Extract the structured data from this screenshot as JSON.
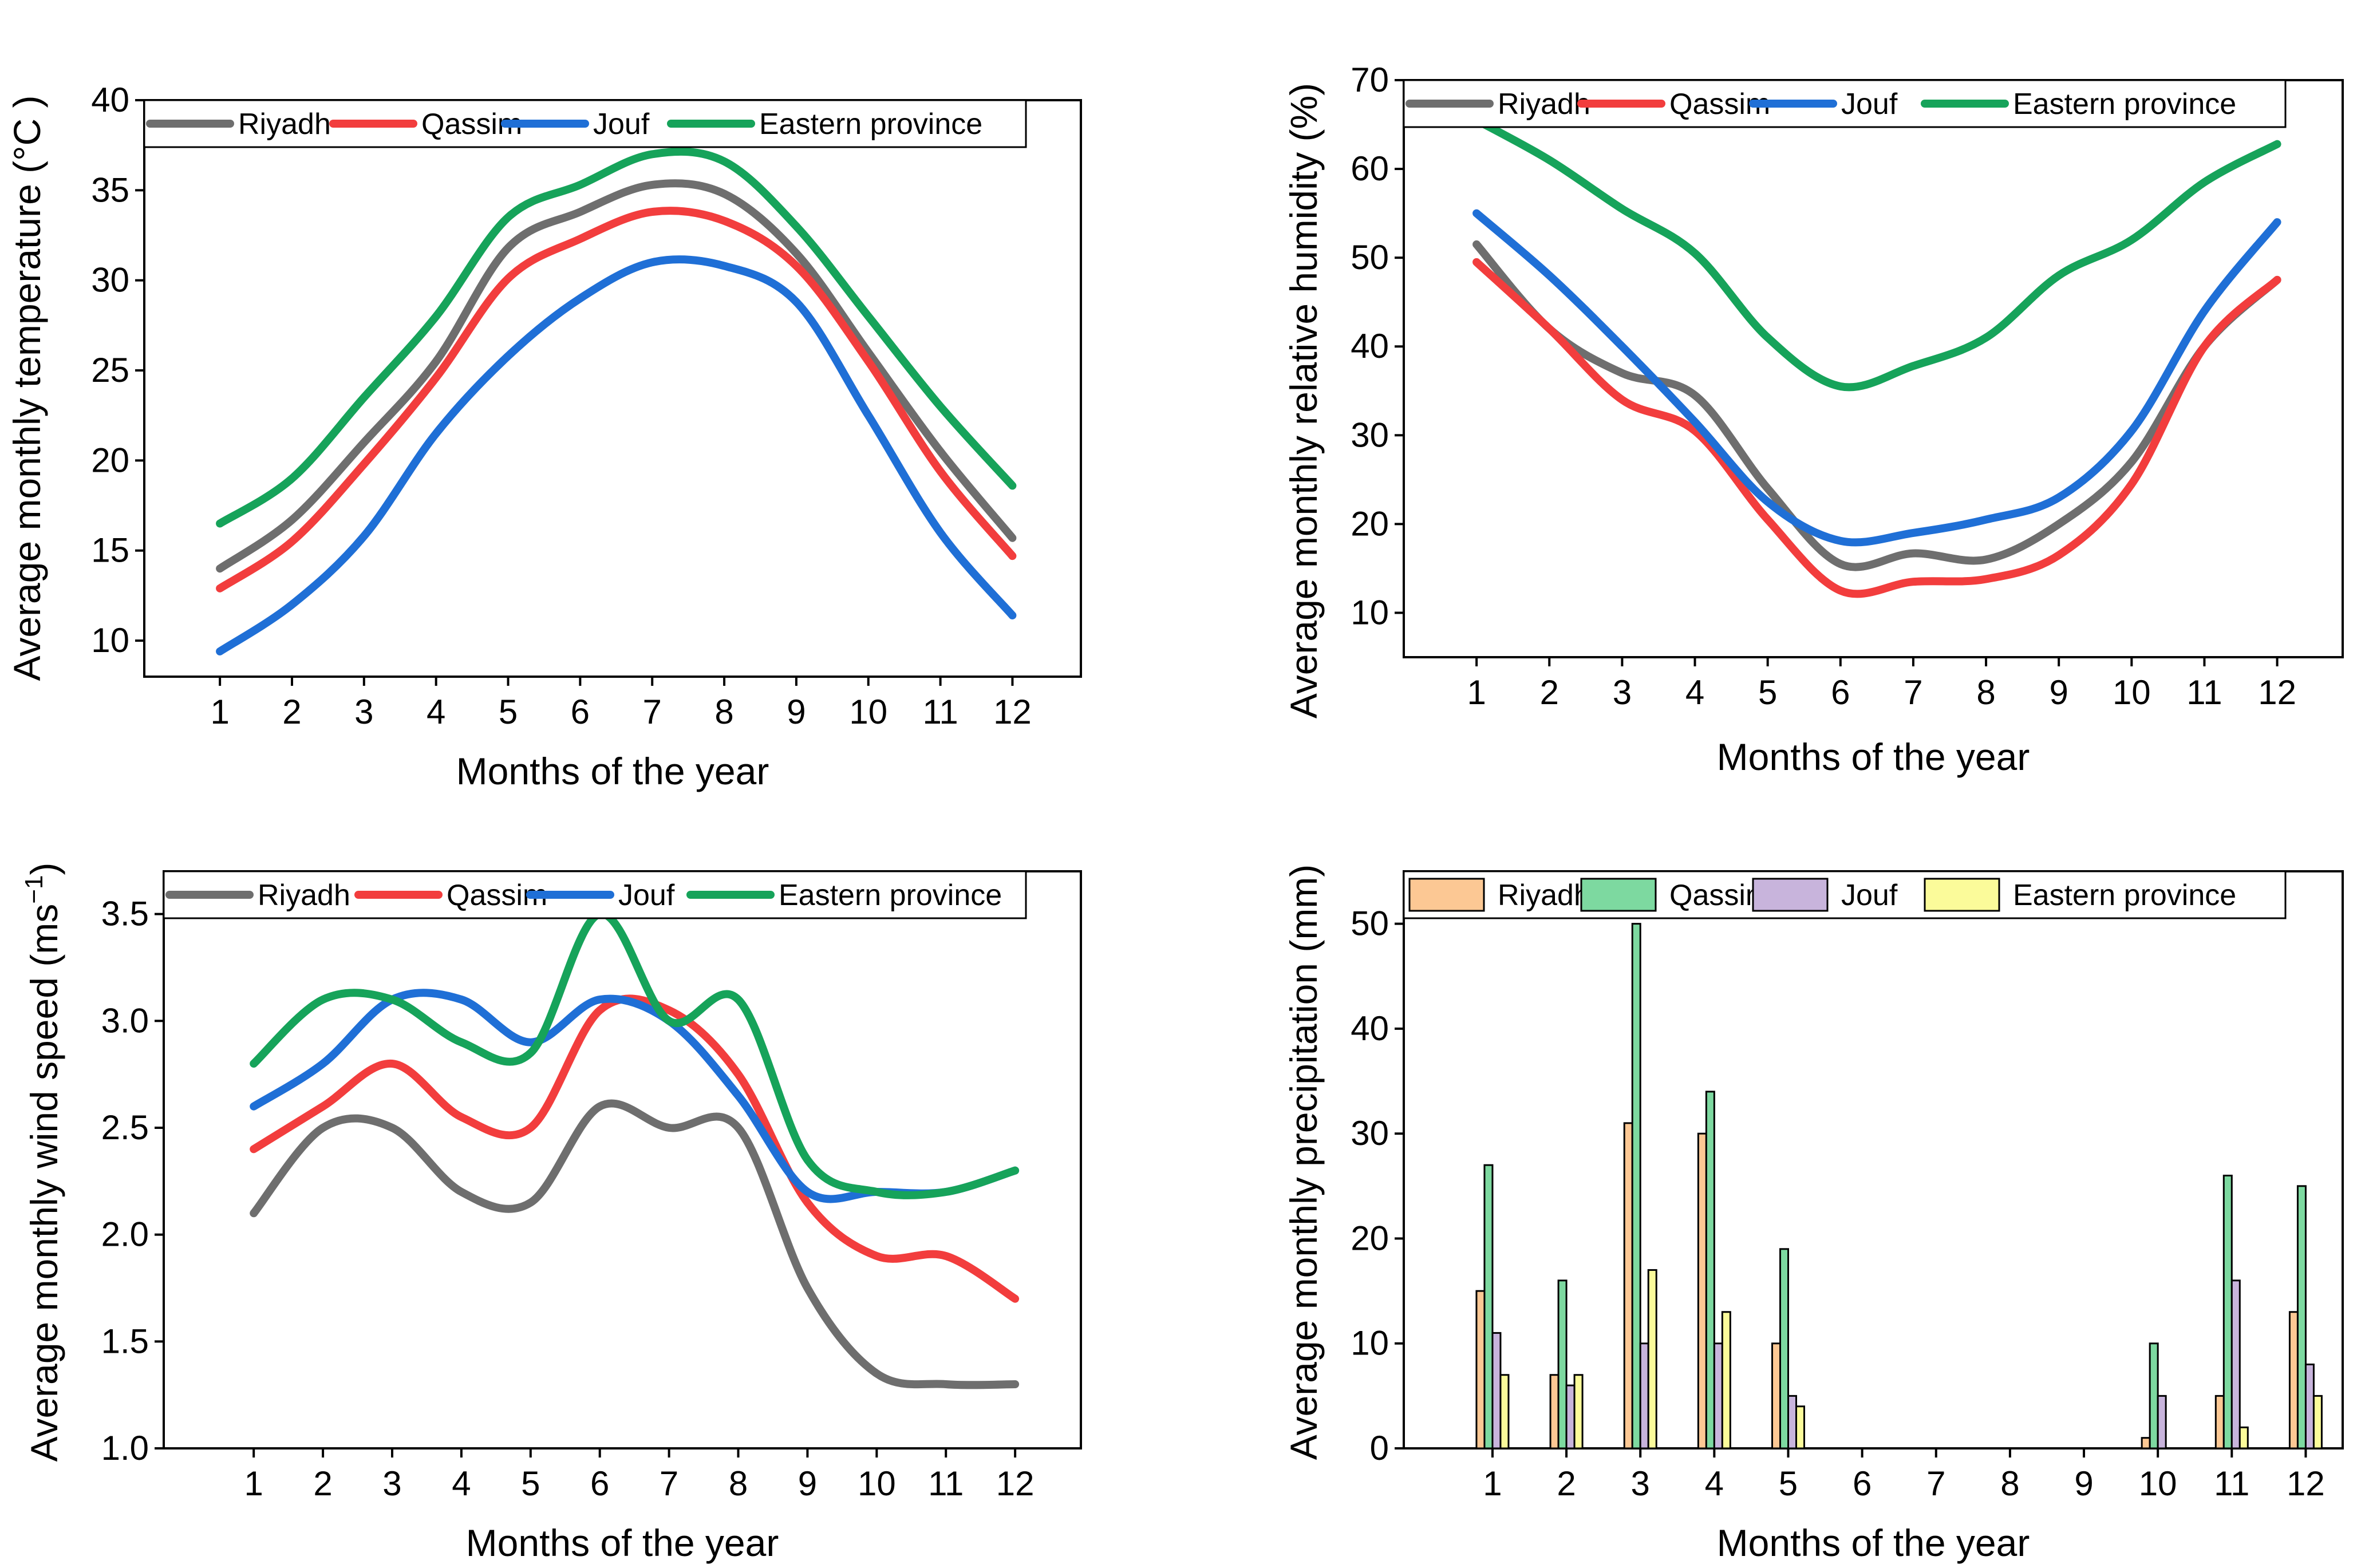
{
  "colors": {
    "Riyadh": "#6e6e6e",
    "Qassim": "#f23d3d",
    "Jouf": "#1f6fd6",
    "Eastern province": "#16a35a"
  },
  "bar_colors": {
    "Riyadh": "#fcc894",
    "Qassim": "#7dd9a0",
    "Jouf": "#c8b4dc",
    "Eastern province": "#fbfb9a"
  },
  "chart_data": [
    {
      "type": "line",
      "x": [
        1,
        2,
        3,
        4,
        5,
        6,
        7,
        8,
        9,
        10,
        11,
        12
      ],
      "xlabel": "Months of the year",
      "ylabel": "Average monthly temperature (°C )",
      "ylim": [
        8,
        40
      ],
      "yticks": [
        10,
        15,
        20,
        25,
        30,
        35,
        40
      ],
      "legend_position": "top",
      "series": [
        {
          "name": "Riyadh",
          "values": [
            14.0,
            16.7,
            21.0,
            25.5,
            31.8,
            33.8,
            35.3,
            34.8,
            31.5,
            26.0,
            20.5,
            15.7
          ]
        },
        {
          "name": "Qassim",
          "values": [
            12.9,
            15.5,
            19.8,
            24.6,
            30.1,
            32.3,
            33.8,
            33.3,
            30.8,
            25.5,
            19.4,
            14.7
          ]
        },
        {
          "name": "Jouf",
          "values": [
            9.4,
            12.0,
            15.8,
            21.5,
            25.8,
            29.0,
            31.0,
            30.8,
            28.8,
            22.5,
            16.0,
            11.4
          ]
        },
        {
          "name": "Eastern province",
          "values": [
            16.5,
            19.0,
            23.5,
            28.0,
            33.5,
            35.3,
            37.0,
            36.6,
            33.0,
            28.0,
            23.0,
            18.6
          ]
        }
      ]
    },
    {
      "type": "line",
      "x": [
        1,
        2,
        3,
        4,
        5,
        6,
        7,
        8,
        9,
        10,
        11,
        12
      ],
      "xlabel": "Months of the year",
      "ylabel": "Average monthly relative humidity (%)",
      "ylim": [
        5,
        70
      ],
      "yticks": [
        10,
        20,
        30,
        40,
        50,
        60,
        70
      ],
      "legend_position": "top",
      "series": [
        {
          "name": "Riyadh",
          "values": [
            51.5,
            42.0,
            37.0,
            34.5,
            24.0,
            15.5,
            16.7,
            16.0,
            20.0,
            27.0,
            40.0,
            47.5
          ]
        },
        {
          "name": "Qassim",
          "values": [
            49.5,
            42.0,
            34.0,
            30.5,
            20.5,
            12.5,
            13.5,
            13.8,
            16.5,
            24.5,
            40.0,
            47.5
          ]
        },
        {
          "name": "Jouf",
          "values": [
            55.0,
            48.0,
            40.0,
            31.5,
            22.5,
            18.1,
            19.0,
            20.5,
            23.0,
            30.5,
            44.0,
            54.0
          ]
        },
        {
          "name": "Eastern province",
          "values": [
            65.5,
            61.0,
            55.5,
            50.5,
            41.0,
            35.5,
            37.8,
            41.0,
            48.0,
            52.0,
            58.5,
            62.8
          ]
        }
      ]
    },
    {
      "type": "line",
      "x": [
        1,
        2,
        3,
        4,
        5,
        6,
        7,
        8,
        9,
        10,
        11,
        12
      ],
      "xlabel": "Months of the year",
      "ylabel": "Average monthly wind speed (ms",
      "ylabel_sup": "−1",
      "ylabel_end": ")",
      "ylim": [
        1.0,
        3.7
      ],
      "yticks": [
        1.0,
        1.5,
        2.0,
        2.5,
        3.0,
        3.5
      ],
      "legend_position": "top",
      "series": [
        {
          "name": "Riyadh",
          "values": [
            2.1,
            2.5,
            2.5,
            2.2,
            2.15,
            2.6,
            2.5,
            2.5,
            1.75,
            1.35,
            1.3,
            1.3
          ]
        },
        {
          "name": "Qassim",
          "values": [
            2.4,
            2.6,
            2.8,
            2.55,
            2.5,
            3.05,
            3.05,
            2.75,
            2.15,
            1.9,
            1.9,
            1.7
          ]
        },
        {
          "name": "Jouf",
          "values": [
            2.6,
            2.8,
            3.1,
            3.1,
            2.9,
            3.1,
            3.0,
            2.65,
            2.2,
            2.2,
            2.2,
            2.3
          ]
        },
        {
          "name": "Eastern province",
          "values": [
            2.8,
            3.1,
            3.1,
            2.9,
            2.85,
            3.5,
            3.0,
            3.1,
            2.35,
            2.2,
            2.2,
            2.3
          ]
        }
      ]
    },
    {
      "type": "bar",
      "categories": [
        "1",
        "2",
        "3",
        "4",
        "5",
        "6",
        "7",
        "8",
        "9",
        "10",
        "11",
        "12"
      ],
      "xlabel": "Months of the year",
      "ylabel": "Average monthly precipitation (mm)",
      "ylim": [
        0,
        55
      ],
      "yticks": [
        0,
        10,
        20,
        30,
        40,
        50
      ],
      "legend_position": "top",
      "series": [
        {
          "name": "Riyadh",
          "values": [
            15,
            7,
            31,
            30,
            10,
            0,
            0,
            0,
            0,
            1,
            5,
            13
          ]
        },
        {
          "name": "Qassim",
          "values": [
            27,
            16,
            50,
            34,
            19,
            0,
            0,
            0,
            0,
            10,
            26,
            25
          ]
        },
        {
          "name": "Jouf",
          "values": [
            11,
            6,
            10,
            10,
            5,
            0,
            0,
            0,
            0,
            5,
            16,
            8
          ]
        },
        {
          "name": "Eastern province",
          "values": [
            7,
            7,
            17,
            13,
            4,
            0,
            0,
            0,
            0,
            0,
            2,
            5
          ]
        }
      ]
    }
  ]
}
